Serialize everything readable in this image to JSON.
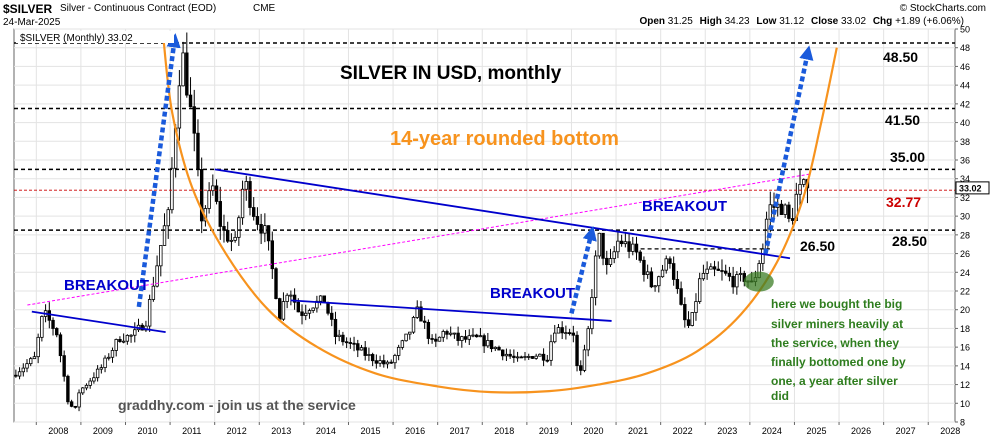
{
  "header": {
    "symbol": "$SILVER",
    "contract": "Silver - Continuous Contract (EOD)",
    "exchange": "CME",
    "date": "24-Mar-2025",
    "brand": "© StockCharts.com",
    "open_label": "Open",
    "open": "31.25",
    "high_label": "High",
    "high": "34.23",
    "low_label": "Low",
    "low": "31.12",
    "close_label": "Close",
    "close": "33.02",
    "chg_label": "Chg",
    "chg": "+1.89 (+6.06%)"
  },
  "legend": {
    "series_label": "$SILVER (Monthly) 33.02"
  },
  "chart_data": {
    "type": "candlestick",
    "title": "SILVER IN USD, monthly",
    "subtitle": "14-year rounded bottom",
    "interval": "monthly",
    "y_axis": {
      "side": "right",
      "range": [
        8,
        50
      ],
      "ticks": [
        8,
        10,
        12,
        14,
        16,
        18,
        20,
        22,
        24,
        26,
        28,
        30,
        32,
        34,
        36,
        38,
        40,
        42,
        44,
        46,
        48,
        50
      ]
    },
    "x_axis": {
      "range": [
        2007.5,
        2028.6
      ],
      "tick_labels": [
        "2008",
        "2009",
        "2010",
        "2011",
        "2012",
        "2013",
        "2014",
        "2015",
        "2016",
        "2017",
        "2018",
        "2019",
        "2020",
        "2021",
        "2022",
        "2023",
        "2024",
        "2025",
        "2026",
        "2027",
        "2028"
      ]
    },
    "grid": true,
    "last_price": 33.02,
    "price_path": [
      [
        2007.5,
        13.0
      ],
      [
        2008.0,
        14.8
      ],
      [
        2008.2,
        19.8
      ],
      [
        2008.5,
        17.5
      ],
      [
        2008.75,
        10.5
      ],
      [
        2008.9,
        9.0
      ],
      [
        2009.0,
        11.2
      ],
      [
        2009.5,
        13.8
      ],
      [
        2009.9,
        17.0
      ],
      [
        2010.2,
        17.2
      ],
      [
        2010.5,
        18.8
      ],
      [
        2010.9,
        28.5
      ],
      [
        2011.0,
        30.0
      ],
      [
        2011.3,
        48.0
      ],
      [
        2011.55,
        39.5
      ],
      [
        2011.75,
        30.0
      ],
      [
        2012.0,
        33.0
      ],
      [
        2012.2,
        28.5
      ],
      [
        2012.5,
        27.0
      ],
      [
        2012.7,
        34.0
      ],
      [
        2012.95,
        30.0
      ],
      [
        2013.2,
        28.0
      ],
      [
        2013.5,
        19.5
      ],
      [
        2013.7,
        22.5
      ],
      [
        2013.95,
        19.5
      ],
      [
        2014.2,
        20.5
      ],
      [
        2014.5,
        21.0
      ],
      [
        2014.75,
        17.2
      ],
      [
        2015.0,
        16.5
      ],
      [
        2015.5,
        15.0
      ],
      [
        2015.95,
        14.0
      ],
      [
        2016.4,
        17.5
      ],
      [
        2016.6,
        20.0
      ],
      [
        2016.95,
        16.0
      ],
      [
        2017.2,
        17.8
      ],
      [
        2017.5,
        16.8
      ],
      [
        2017.95,
        16.9
      ],
      [
        2018.5,
        15.5
      ],
      [
        2018.85,
        14.5
      ],
      [
        2019.2,
        15.2
      ],
      [
        2019.5,
        15.0
      ],
      [
        2019.65,
        18.0
      ],
      [
        2019.95,
        17.8
      ],
      [
        2020.1,
        17.5
      ],
      [
        2020.2,
        12.0
      ],
      [
        2020.4,
        17.0
      ],
      [
        2020.55,
        24.0
      ],
      [
        2020.65,
        28.0
      ],
      [
        2020.85,
        24.0
      ],
      [
        2021.1,
        27.5
      ],
      [
        2021.5,
        26.0
      ],
      [
        2021.85,
        22.5
      ],
      [
        2022.1,
        24.5
      ],
      [
        2022.25,
        25.5
      ],
      [
        2022.55,
        19.0
      ],
      [
        2022.7,
        18.0
      ],
      [
        2022.95,
        23.8
      ],
      [
        2023.25,
        24.0
      ],
      [
        2023.45,
        23.8
      ],
      [
        2023.7,
        23.0
      ],
      [
        2023.95,
        23.5
      ],
      [
        2024.1,
        22.5
      ],
      [
        2024.35,
        27.0
      ],
      [
        2024.45,
        31.0
      ],
      [
        2024.8,
        31.0
      ],
      [
        2024.95,
        29.0
      ],
      [
        2025.1,
        32.5
      ],
      [
        2025.23,
        33.02
      ]
    ],
    "resistance_levels": [
      {
        "value": 48.5,
        "label": "48.50"
      },
      {
        "value": 41.5,
        "label": "41.50"
      },
      {
        "value": 35.0,
        "label": "35.00"
      },
      {
        "value": 28.5,
        "label": "28.50"
      }
    ],
    "current_level": {
      "value": 32.77,
      "label": "32.77",
      "color": "#cc0000"
    },
    "short_level": {
      "value": 26.5,
      "label": "26.50",
      "x_range": [
        2021.55,
        2024.45
      ]
    },
    "breakout_lines": [
      {
        "from": [
          2007.9,
          19.8
        ],
        "to": [
          2010.9,
          17.6
        ]
      },
      {
        "from": [
          2012.0,
          35.0
        ],
        "to": [
          2024.9,
          25.5
        ]
      },
      {
        "from": [
          2013.7,
          21.0
        ],
        "to": [
          2020.9,
          18.8
        ]
      }
    ],
    "log_trend_line": {
      "from": [
        2007.8,
        20.5
      ],
      "to": [
        2025.35,
        34.5
      ],
      "color": "#ff00ff"
    },
    "rounded_bottom": {
      "points": [
        [
          2010.85,
          49.0
        ],
        [
          2011.05,
          41.0
        ],
        [
          2011.5,
          33.0
        ],
        [
          2012.25,
          26.0
        ],
        [
          2013.2,
          20.0
        ],
        [
          2014.3,
          16.0
        ],
        [
          2015.6,
          13.2
        ],
        [
          2017.0,
          11.8
        ],
        [
          2018.2,
          11.2
        ],
        [
          2019.5,
          11.3
        ],
        [
          2020.6,
          12.0
        ],
        [
          2021.7,
          13.2
        ],
        [
          2022.8,
          15.5
        ],
        [
          2023.8,
          19.5
        ],
        [
          2024.6,
          25.0
        ],
        [
          2025.2,
          32.0
        ],
        [
          2025.6,
          40.0
        ],
        [
          2025.95,
          48.0
        ]
      ],
      "color": "#f7931e"
    },
    "arrows": [
      {
        "from": [
          2010.3,
          20.3
        ],
        "to": [
          2011.1,
          48.8
        ]
      },
      {
        "from": [
          2020.0,
          19.6
        ],
        "to": [
          2020.45,
          28.2
        ]
      },
      {
        "from": [
          2024.35,
          26.0
        ],
        "to": [
          2025.3,
          47.5
        ]
      }
    ],
    "highlight_zone": {
      "center": [
        2024.2,
        23.0
      ],
      "color": "#3c7d25"
    },
    "annotations": {
      "breakout_1": "BREAKOUT",
      "breakout_2": "BREAKOUT",
      "breakout_3": "BREAKOUT",
      "miners_note": [
        "here we bought the big",
        "silver miners heavily at",
        "the service, when they",
        "finally bottomed one by",
        "one, a year after silver",
        "did"
      ],
      "credit": "graddhy.com - join us at the service"
    },
    "colors": {
      "trendline": "#0000cc",
      "arrow": "#1a5adb",
      "subtitle": "#f7931e",
      "note": "#2e7d1e",
      "candle_up": "#ffffff",
      "candle_down": "#000000"
    }
  }
}
